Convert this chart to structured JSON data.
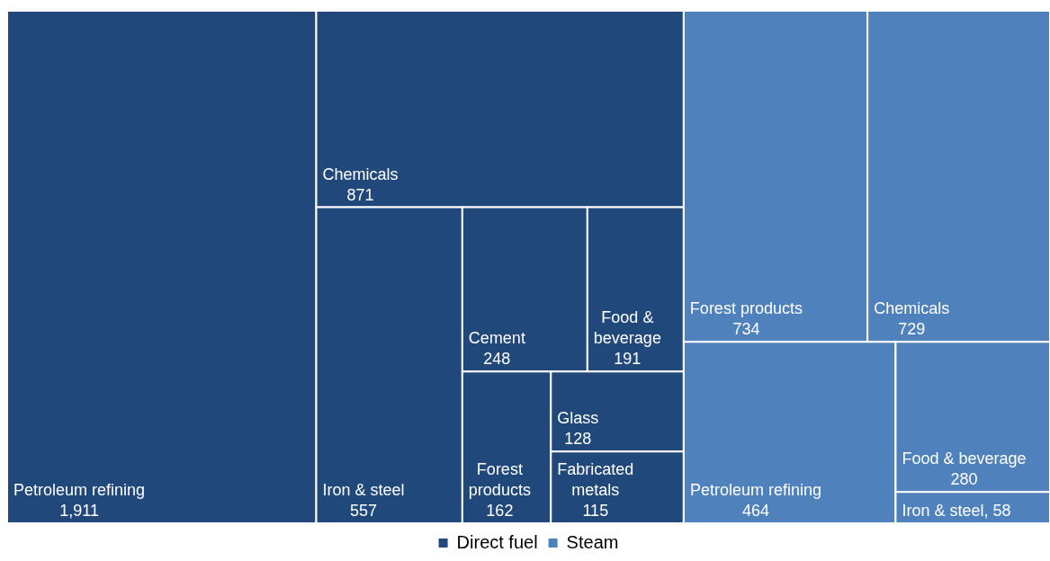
{
  "chart_data": {
    "type": "other",
    "legend": "bottom",
    "data_labels": true,
    "categories": [
      "Petroleum refining",
      "Chemicals",
      "Iron & steel",
      "Cement",
      "Food & beverage",
      "Forest products",
      "Glass",
      "Fabricated metals",
      "Forest products",
      "Chemicals",
      "Petroleum refining",
      "Food & beverage",
      "Iron & steel"
    ],
    "series": [
      {
        "name": "Direct fuel",
        "color": "#21487a",
        "values": [
          1911,
          871,
          557,
          248,
          191,
          162,
          128,
          115,
          null,
          null,
          null,
          null,
          null
        ],
        "value_labels": [
          "1,911",
          "871",
          "557",
          "248",
          "191",
          "162",
          "128",
          "115",
          null,
          null,
          null,
          null,
          null
        ]
      },
      {
        "name": "Steam",
        "color": "#4f81bd",
        "values": [
          null,
          null,
          null,
          null,
          null,
          null,
          null,
          null,
          734,
          729,
          464,
          280,
          58
        ],
        "value_labels": [
          null,
          null,
          null,
          null,
          null,
          null,
          null,
          null,
          "734",
          "729",
          "464",
          "280",
          ", 58"
        ]
      }
    ]
  }
}
